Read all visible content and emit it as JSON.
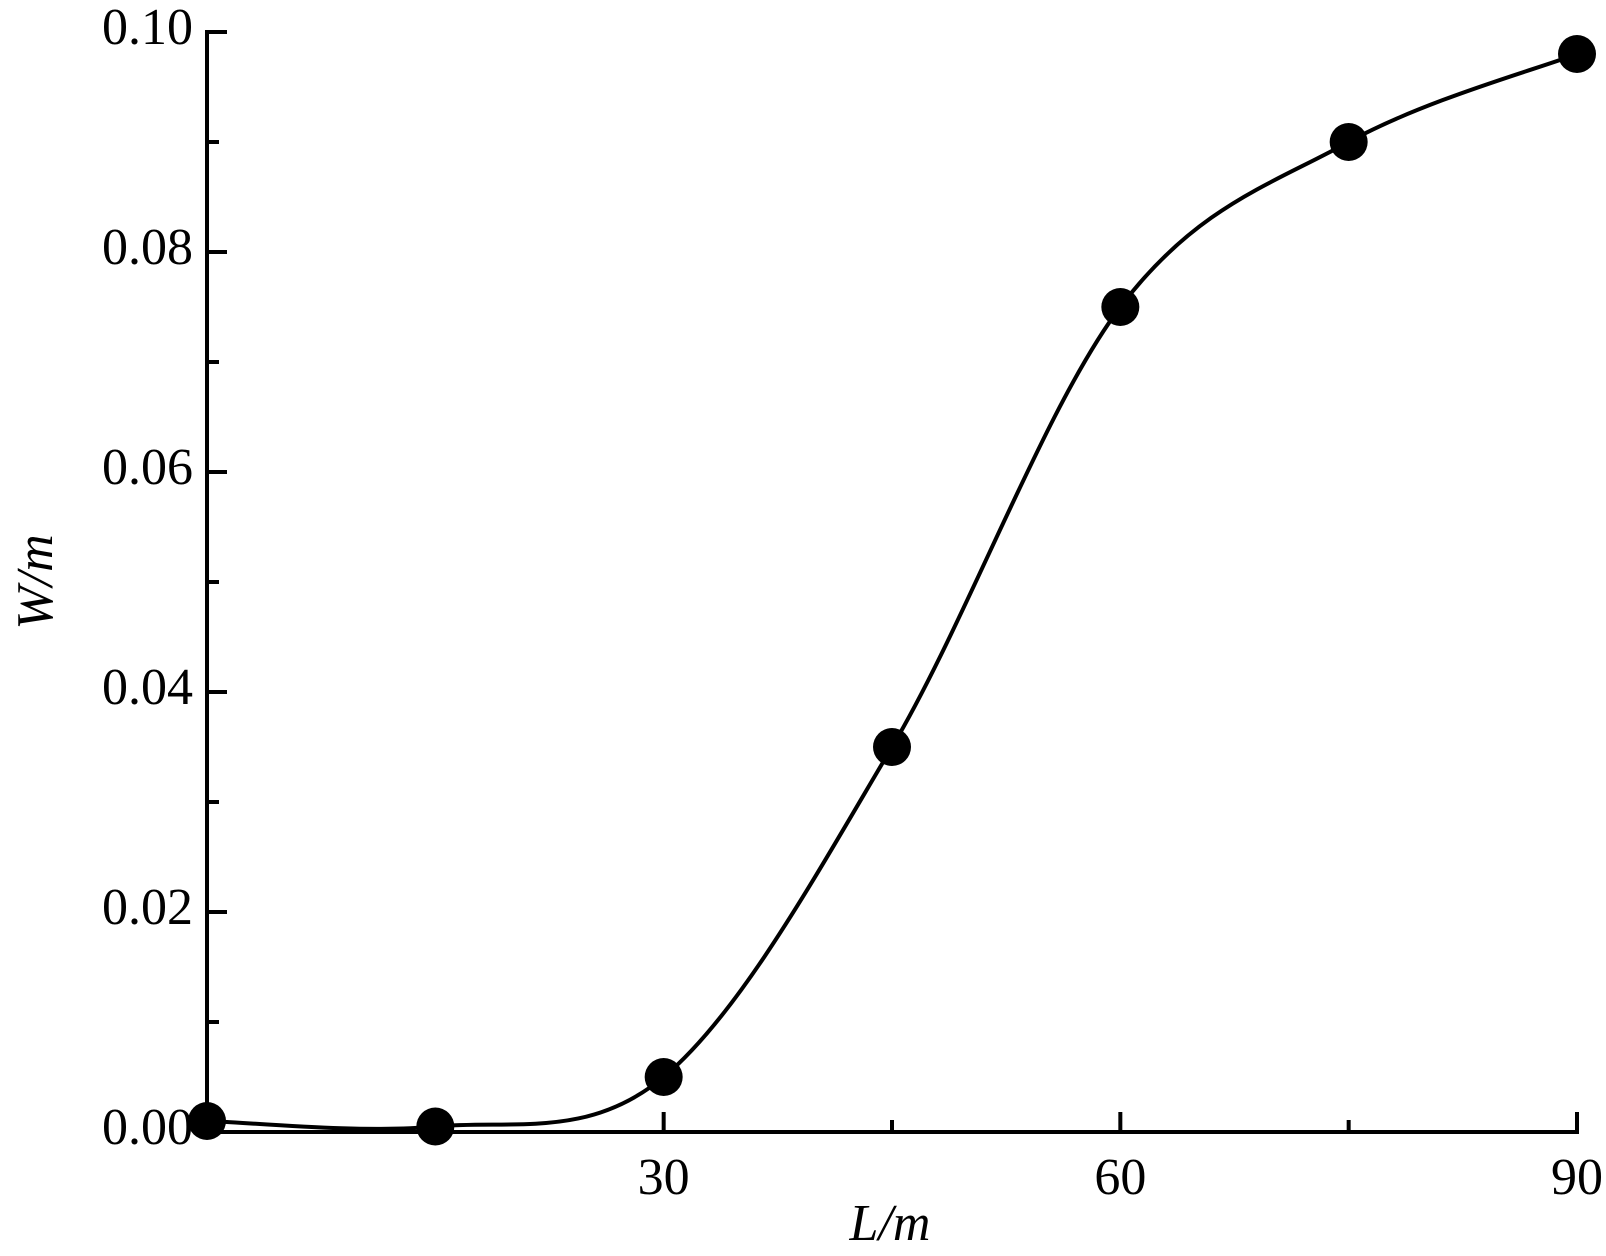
{
  "chart_data": {
    "type": "line",
    "xlabel": "L/m",
    "ylabel": "W/m",
    "x": [
      0,
      15,
      30,
      45,
      60,
      75,
      90
    ],
    "series": [
      {
        "color": "#000000",
        "values": [
          0.001,
          0.0005,
          0.005,
          0.035,
          0.075,
          0.09,
          0.098
        ]
      }
    ],
    "markers": true,
    "xlim": [
      0,
      90
    ],
    "xticks": [
      30,
      60,
      90
    ],
    "xminor_ticks": [
      15,
      45,
      75
    ],
    "ylim": [
      0,
      0.1
    ],
    "yticks": [
      {
        "value": 0,
        "label": "0.00"
      },
      0.02,
      0.04,
      0.06,
      0.08,
      {
        "value": 0.1,
        "label": "0.10"
      }
    ],
    "yminor_ticks": [
      0.01,
      0.03,
      0.05,
      0.07,
      0.09
    ],
    "grid": false
  }
}
